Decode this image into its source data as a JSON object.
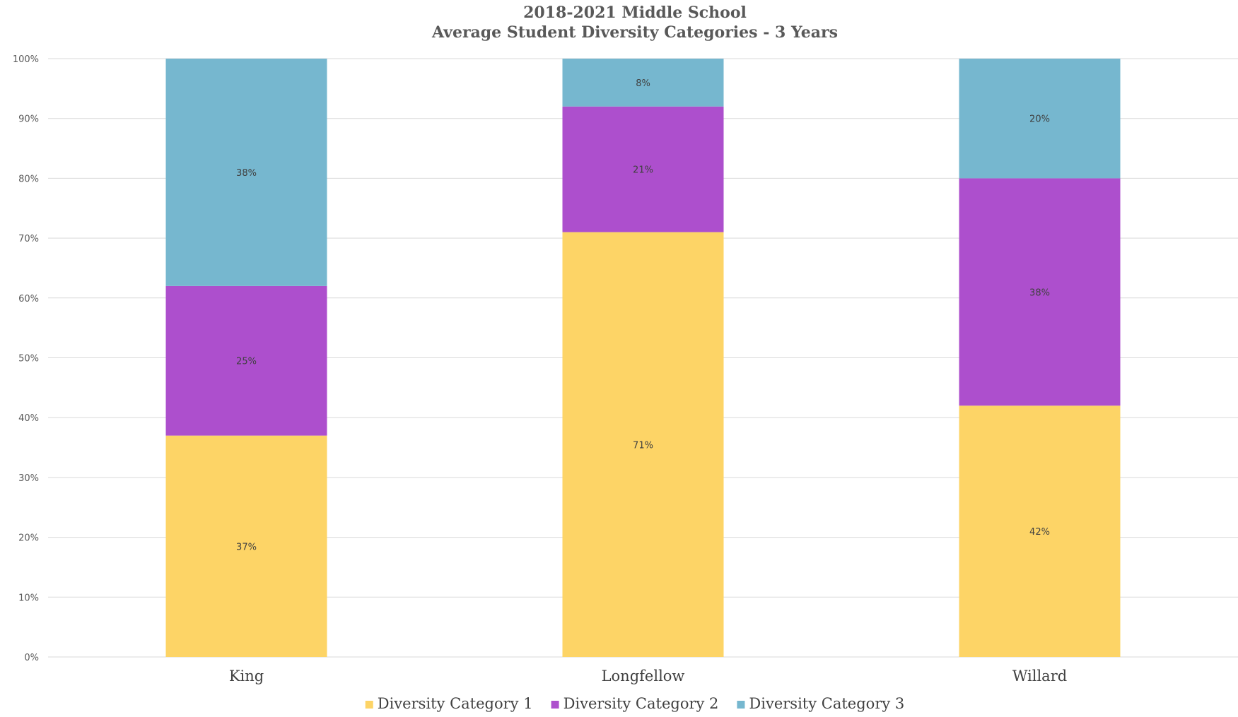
{
  "chart_data": {
    "type": "bar",
    "stacked": true,
    "title": "2018-2021 Middle School",
    "subtitle": "Average Student Diversity Categories - 3 Years",
    "xlabel": "",
    "ylabel": "",
    "ylim": [
      0,
      100
    ],
    "yticks": [
      "0%",
      "10%",
      "20%",
      "30%",
      "40%",
      "50%",
      "60%",
      "70%",
      "80%",
      "90%",
      "100%"
    ],
    "categories": [
      "King",
      "Longfellow",
      "Willard"
    ],
    "grid": true,
    "legend_position": "bottom",
    "series": [
      {
        "name": "Diversity Category 1",
        "color": "#fdd466",
        "values": [
          37,
          71,
          42
        ],
        "labels": [
          "37%",
          "71%",
          "42%"
        ]
      },
      {
        "name": "Diversity Category 2",
        "color": "#ad4fcd",
        "values": [
          25,
          21,
          38
        ],
        "labels": [
          "25%",
          "21%",
          "38%"
        ]
      },
      {
        "name": "Diversity Category 3",
        "color": "#76b7cf",
        "values": [
          38,
          8,
          20
        ],
        "labels": [
          "38%",
          "8%",
          "20%"
        ]
      }
    ]
  }
}
